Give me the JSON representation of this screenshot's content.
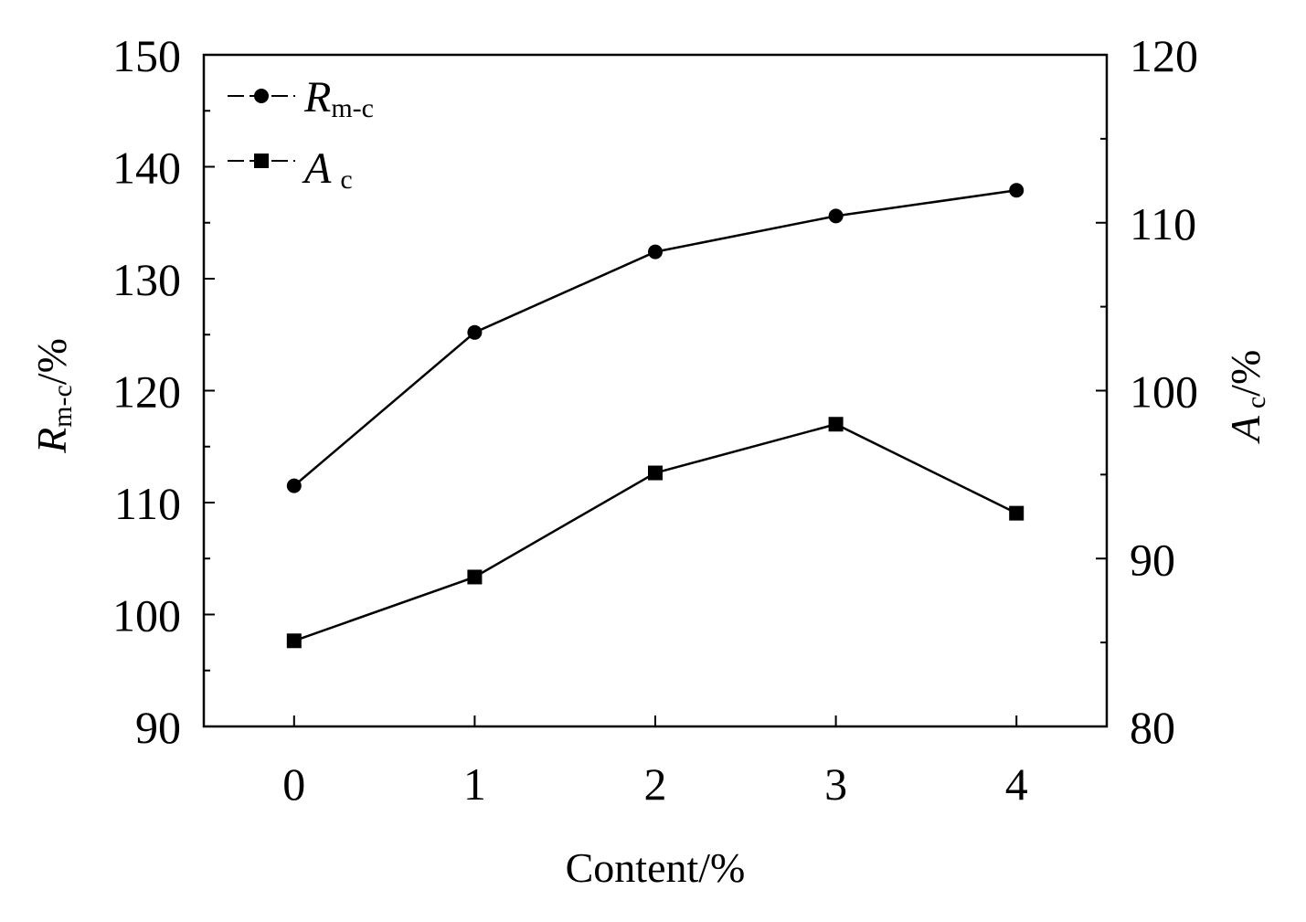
{
  "chart_data": {
    "type": "line",
    "x": [
      0,
      1,
      2,
      3,
      4
    ],
    "x_ticks": [
      "0",
      "1",
      "2",
      "3",
      "4"
    ],
    "xlim": [
      -0.5,
      4.5
    ],
    "xlabel": "Content/%",
    "left_axis": {
      "label_main": "R",
      "label_sub": "m-c",
      "label_unit": "/%",
      "ylim": [
        90,
        150
      ],
      "ticks": [
        "90",
        "100",
        "110",
        "120",
        "130",
        "140",
        "150"
      ]
    },
    "right_axis": {
      "label_main": "A",
      "label_sub": "c",
      "label_unit": "/%",
      "ylim": [
        80,
        120
      ],
      "ticks": [
        "80",
        "90",
        "100",
        "110",
        "120"
      ]
    },
    "series": [
      {
        "name_main": "R",
        "name_sub": "m-c",
        "axis": "left",
        "marker": "circle",
        "values": [
          111.5,
          125.2,
          132.4,
          135.6,
          137.9
        ]
      },
      {
        "name_main": "A",
        "name_sub": "c",
        "axis": "right",
        "marker": "square",
        "values": [
          85.1,
          88.9,
          95.1,
          98.0,
          92.7
        ]
      }
    ],
    "legend_position": "top-left",
    "grid": false,
    "line_color": "#000000"
  }
}
